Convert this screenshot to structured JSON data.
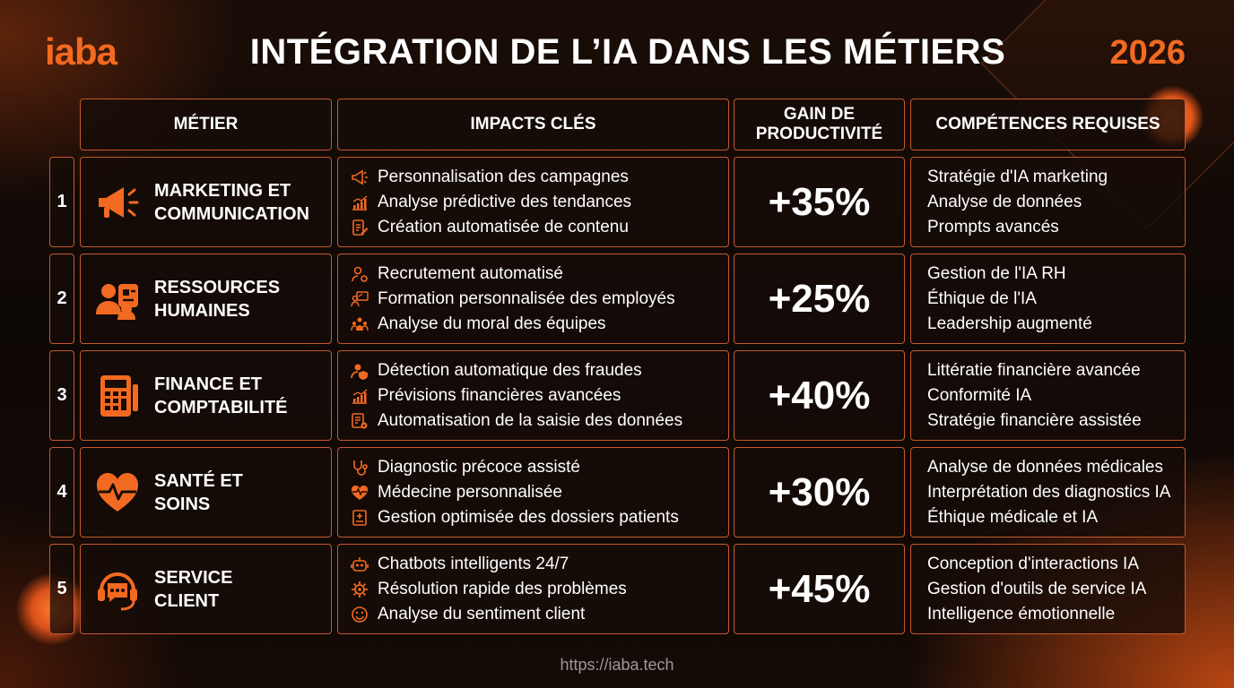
{
  "brand": {
    "logo": "iaba",
    "year": "2026",
    "url": "https://iaba.tech"
  },
  "title": "INTÉGRATION DE L’IA DANS LES MÉTIERS",
  "headers": {
    "job": "MÉTIER",
    "impacts": "IMPACTS CLÉS",
    "gain_line1": "GAIN DE",
    "gain_line2": "PRODUCTIVITÉ",
    "skills": "COMPÉTENCES REQUISES"
  },
  "colors": {
    "accent": "#f26a21",
    "border": "#c55a2e",
    "background": "#0e0806"
  },
  "rows": [
    {
      "num": "1",
      "job_line1": "MARKETING ET",
      "job_line2": "COMMUNICATION",
      "icon": "megaphone-icon",
      "impacts": [
        {
          "text": "Personnalisation des campagnes",
          "icon": "megaphone-icon"
        },
        {
          "text": "Analyse prédictive des tendances",
          "icon": "trend-chart-icon"
        },
        {
          "text": "Création automatisée de contenu",
          "icon": "document-pen-icon"
        }
      ],
      "gain": "+35%",
      "skills": [
        "Stratégie d'IA marketing",
        "Analyse de données",
        "Prompts avancés"
      ]
    },
    {
      "num": "2",
      "job_line1": "RESSOURCES",
      "job_line2": "HUMAINES",
      "icon": "people-badge-icon",
      "impacts": [
        {
          "text": "Recrutement automatisé",
          "icon": "user-gear-icon"
        },
        {
          "text": "Formation personnalisée des employés",
          "icon": "training-board-icon"
        },
        {
          "text": "Analyse du moral des équipes",
          "icon": "team-icon"
        }
      ],
      "gain": "+25%",
      "skills": [
        "Gestion de l'IA RH",
        "Éthique de l'IA",
        "Leadership augmenté"
      ]
    },
    {
      "num": "3",
      "job_line1": "FINANCE ET",
      "job_line2": "COMPTABILITÉ",
      "icon": "calculator-icon",
      "impacts": [
        {
          "text": "Détection automatique des fraudes",
          "icon": "user-shield-icon"
        },
        {
          "text": "Prévisions financières avancées",
          "icon": "trend-chart-icon"
        },
        {
          "text": "Automatisation de la saisie des données",
          "icon": "form-gear-icon"
        }
      ],
      "gain": "+40%",
      "skills": [
        "Littératie financière avancée",
        "Conformité IA",
        "Stratégie financière assistée"
      ]
    },
    {
      "num": "4",
      "job_line1": "SANTÉ ET",
      "job_line2": "SOINS",
      "icon": "heart-pulse-icon",
      "impacts": [
        {
          "text": "Diagnostic précoce assisté",
          "icon": "stethoscope-icon"
        },
        {
          "text": "Médecine personnalisée",
          "icon": "heart-pulse-icon"
        },
        {
          "text": "Gestion optimisée des dossiers patients",
          "icon": "medical-file-icon"
        }
      ],
      "gain": "+30%",
      "skills": [
        "Analyse de données médicales",
        "Interprétation des diagnostics IA",
        "Éthique médicale et IA"
      ]
    },
    {
      "num": "5",
      "job_line1": "SERVICE",
      "job_line2": "CLIENT",
      "icon": "headset-chat-icon",
      "impacts": [
        {
          "text": "Chatbots intelligents 24/7",
          "icon": "robot-icon"
        },
        {
          "text": "Résolution rapide des problèmes",
          "icon": "gear-icon"
        },
        {
          "text": "Analyse du sentiment client",
          "icon": "smiley-icon"
        }
      ],
      "gain": "+45%",
      "skills": [
        "Conception d'interactions IA",
        "Gestion d'outils de service IA",
        "Intelligence émotionnelle"
      ]
    }
  ]
}
